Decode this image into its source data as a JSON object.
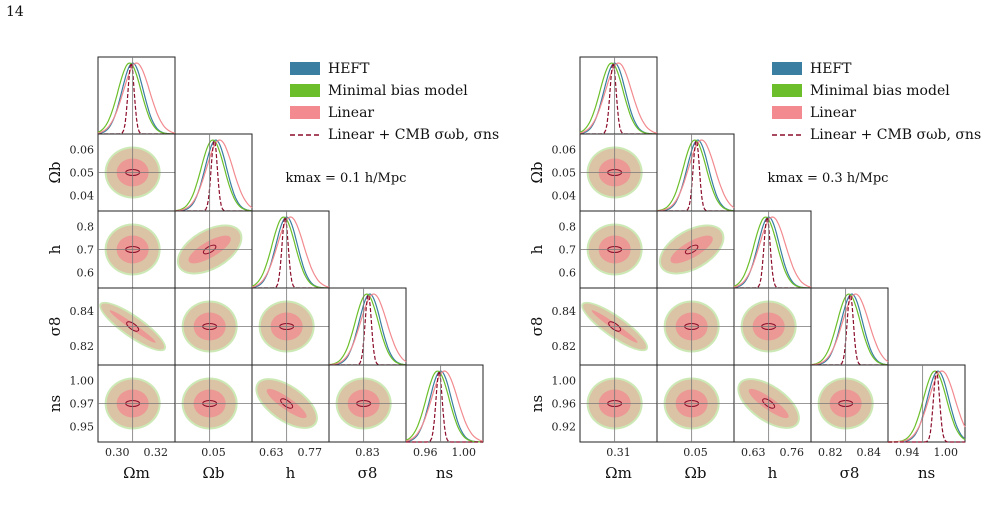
{
  "page_number": "14",
  "chart_data": [
    {
      "type": "corner",
      "panel": "left",
      "params": [
        "Ωm",
        "Ωb",
        "h",
        "σ8",
        "ns"
      ],
      "tick_labels": [
        [
          "0.30",
          "0.32"
        ],
        [
          "0.05"
        ],
        [
          "0.63",
          "0.77"
        ],
        [
          "0.83"
        ],
        [
          "0.96",
          "1.00"
        ]
      ],
      "ytick_labels": {
        "Ωb": [
          "0.06",
          "0.05",
          "0.04"
        ],
        "h": [
          "0.8",
          "0.7",
          "0.6"
        ],
        "σ8": [
          "0.84",
          "0.82"
        ],
        "ns": [
          "1.00",
          "0.97",
          "0.95"
        ]
      },
      "annotation": "kmax = 0.1 h/Mpc",
      "legend": [
        "HEFT",
        "Minimal bias model",
        "Linear",
        "Linear + CMB σωb, σns"
      ]
    },
    {
      "type": "corner",
      "panel": "right",
      "params": [
        "Ωm",
        "Ωb",
        "h",
        "σ8",
        "ns"
      ],
      "tick_labels": [
        [
          "0.31"
        ],
        [
          "0.05"
        ],
        [
          "0.63",
          "0.76"
        ],
        [
          "0.82",
          "0.84"
        ],
        [
          "0.94",
          "1.00"
        ]
      ],
      "ytick_labels": {
        "Ωb": [
          "0.06",
          "0.05",
          "0.04"
        ],
        "h": [
          "0.8",
          "0.7",
          "0.6"
        ],
        "σ8": [
          "0.84",
          "0.82"
        ],
        "ns": [
          "1.00",
          "0.96",
          "0.92"
        ]
      },
      "annotation": "kmax = 0.3 h/Mpc",
      "legend": [
        "HEFT",
        "Minimal bias model",
        "Linear",
        "Linear + CMB σωb, σns"
      ]
    }
  ],
  "colors": {
    "heft": "#3a7ea1",
    "minimal": "#6cbf2a",
    "linear": "#f28a8f",
    "cmb": "#8b0d2a"
  }
}
